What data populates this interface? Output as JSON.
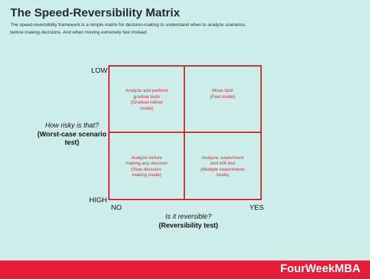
{
  "header": {
    "title": "The Speed-Reversibility Matrix",
    "subtitle": "The speed-reversibility framework is a simple matrix for decision-making to understand when to analyze scenarios before making decisions. And when moving extremely fast instead."
  },
  "y_axis": {
    "question": "How risky is that?",
    "test_name": "(Worst-case scenario test)",
    "top_label": "LOW",
    "bottom_label": "HIGH"
  },
  "x_axis": {
    "question": "Is it reversible?",
    "test_name": "(Reversibility test)",
    "left_label": "NO",
    "right_label": "YES"
  },
  "quadrants": {
    "top_left": "Analyze and perform\ngradual tests\n(Gradual rollout\nmode)",
    "top_right": "Move fast!\n(Fast mode)",
    "bottom_left": "Analyze before\nmaking any decision\n(Slow decision-\nmaking mode)",
    "bottom_right": "Analyze, experiment\nand A/B test\n(Multiple experiments\nmode)"
  },
  "footer": {
    "brand": "FourWeekMBA"
  },
  "colors": {
    "background": "#cdeeea",
    "accent_red": "#d6242f",
    "footer_red": "#e51d38",
    "title_navy": "#1e2a3a"
  }
}
